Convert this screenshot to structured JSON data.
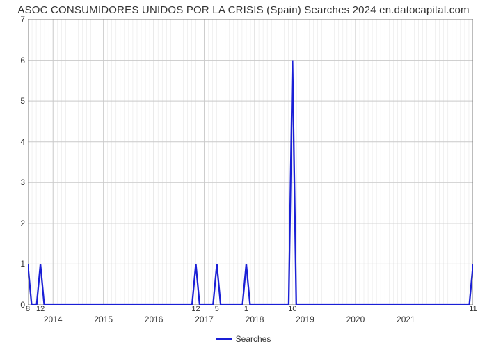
{
  "chart": {
    "type": "line",
    "title": "ASOC CONSUMIDORES UNIDOS POR LA CRISIS (Spain) Searches 2024 en.datocapital.com",
    "title_fontsize": 15,
    "title_color": "#333333",
    "background_color": "#ffffff",
    "plot_background": "#ffffff",
    "grid_color": "#c9c9c9",
    "grid_minor_color": "#e3e3e3",
    "axis_color": "#7a7a7a",
    "line_color": "#1a1fd6",
    "line_width": 2.3,
    "fill_color": "none",
    "x_range": [
      0,
      106
    ],
    "y_range": [
      0,
      7
    ],
    "y_ticks": [
      0,
      1,
      2,
      3,
      4,
      5,
      6,
      7
    ],
    "y_tick_fontsize": 12,
    "x_minor_step": 1,
    "x_year_labels": [
      {
        "x": 6,
        "label": "2014"
      },
      {
        "x": 18,
        "label": "2015"
      },
      {
        "x": 30,
        "label": "2016"
      },
      {
        "x": 42,
        "label": "2017"
      },
      {
        "x": 54,
        "label": "2018"
      },
      {
        "x": 66,
        "label": "2019"
      },
      {
        "x": 78,
        "label": "2020"
      },
      {
        "x": 90,
        "label": "2021"
      }
    ],
    "series": {
      "name": "Searches",
      "points": [
        {
          "x": 0,
          "y": 1,
          "label": "8"
        },
        {
          "x": 3,
          "y": 1,
          "label": "12"
        },
        {
          "x": 40,
          "y": 1,
          "label": "12"
        },
        {
          "x": 45,
          "y": 1,
          "label": "5"
        },
        {
          "x": 52,
          "y": 1,
          "label": "1"
        },
        {
          "x": 63,
          "y": 6,
          "label": "10"
        },
        {
          "x": 106,
          "y": 1,
          "label": "11"
        }
      ],
      "spike_half_width": 0.9
    },
    "legend": {
      "label": "Searches",
      "swatch_color": "#1a1fd6",
      "fontsize": 12
    }
  }
}
